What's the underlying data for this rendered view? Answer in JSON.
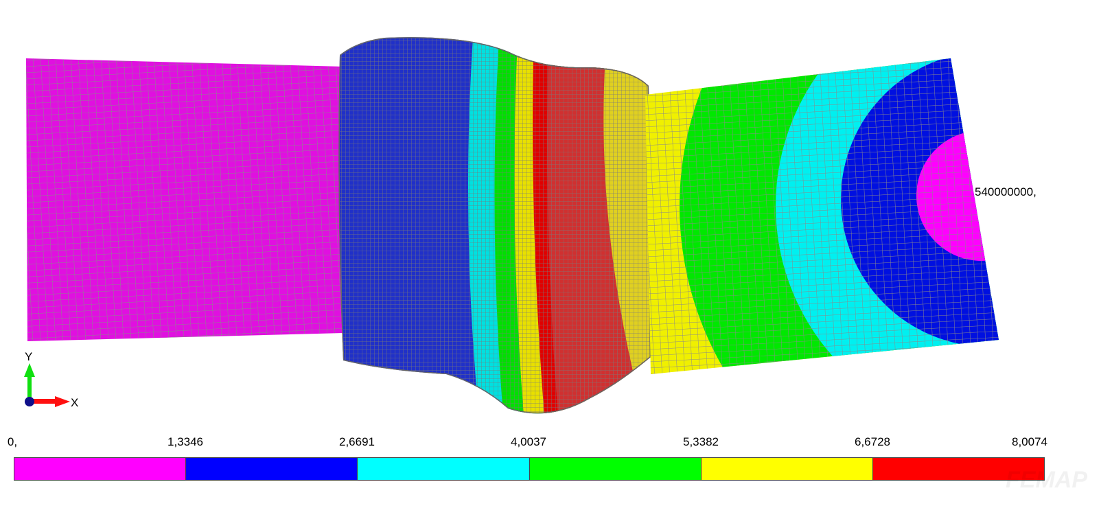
{
  "model": {
    "node_label": "540000000,",
    "colors": [
      "#ff00ff",
      "#0000ff",
      "#00ffff",
      "#00ff00",
      "#ffff00",
      "#ff0000"
    ],
    "mesh_color": "#8a8a8a"
  },
  "triad": {
    "x_label": "X",
    "y_label": "Y"
  },
  "legend": {
    "labels": [
      "0,",
      "1,3346",
      "2,6691",
      "4,0037",
      "5,3382",
      "6,6728",
      "8,0074"
    ],
    "colors": [
      "#ff00ff",
      "#0000ff",
      "#00ffff",
      "#00ff00",
      "#ffff00",
      "#ff0000"
    ]
  },
  "watermark": "FEMAP"
}
